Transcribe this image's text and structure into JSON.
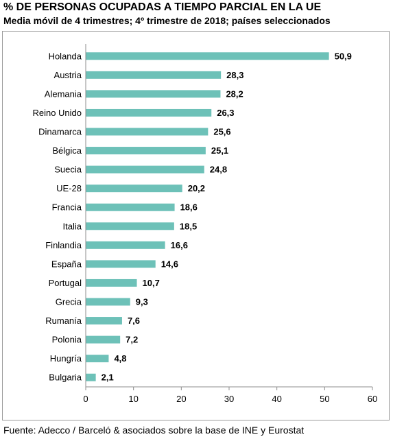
{
  "chart_data": {
    "type": "bar",
    "orientation": "horizontal",
    "title": "% DE PERSONAS OCUPADAS A TIEMPO PARCIAL EN LA UE",
    "subtitle": "Media móvil de 4 trimestres; 4º trimestre de 2018; países seleccionados",
    "categories": [
      "Holanda",
      "Austria",
      "Alemania",
      "Reino Unido",
      "Dinamarca",
      "Bélgica",
      "Suecia",
      "UE-28",
      "Francia",
      "Italia",
      "Finlandia",
      "España",
      "Portugal",
      "Grecia",
      "Rumanía",
      "Polonia",
      "Hungría",
      "Bulgaria"
    ],
    "values": [
      50.9,
      28.3,
      28.2,
      26.3,
      25.6,
      25.1,
      24.8,
      20.2,
      18.6,
      18.5,
      16.6,
      14.6,
      10.7,
      9.3,
      7.6,
      7.2,
      4.8,
      2.1
    ],
    "value_labels": [
      "50,9",
      "28,3",
      "28,2",
      "26,3",
      "25,6",
      "25,1",
      "24,8",
      "20,2",
      "18,6",
      "18,5",
      "16,6",
      "14,6",
      "10,7",
      "9,3",
      "7,6",
      "7,2",
      "4,8",
      "2,1"
    ],
    "xlim": [
      0,
      60
    ],
    "xticks": [
      0,
      10,
      20,
      30,
      40,
      50,
      60
    ],
    "xlabel": "",
    "ylabel": "",
    "grid": false,
    "legend": "none",
    "bar_color": "#6dc1b8",
    "source": "Fuente: Adecco / Barceló & asociados sobre la base de INE y Eurostat"
  }
}
